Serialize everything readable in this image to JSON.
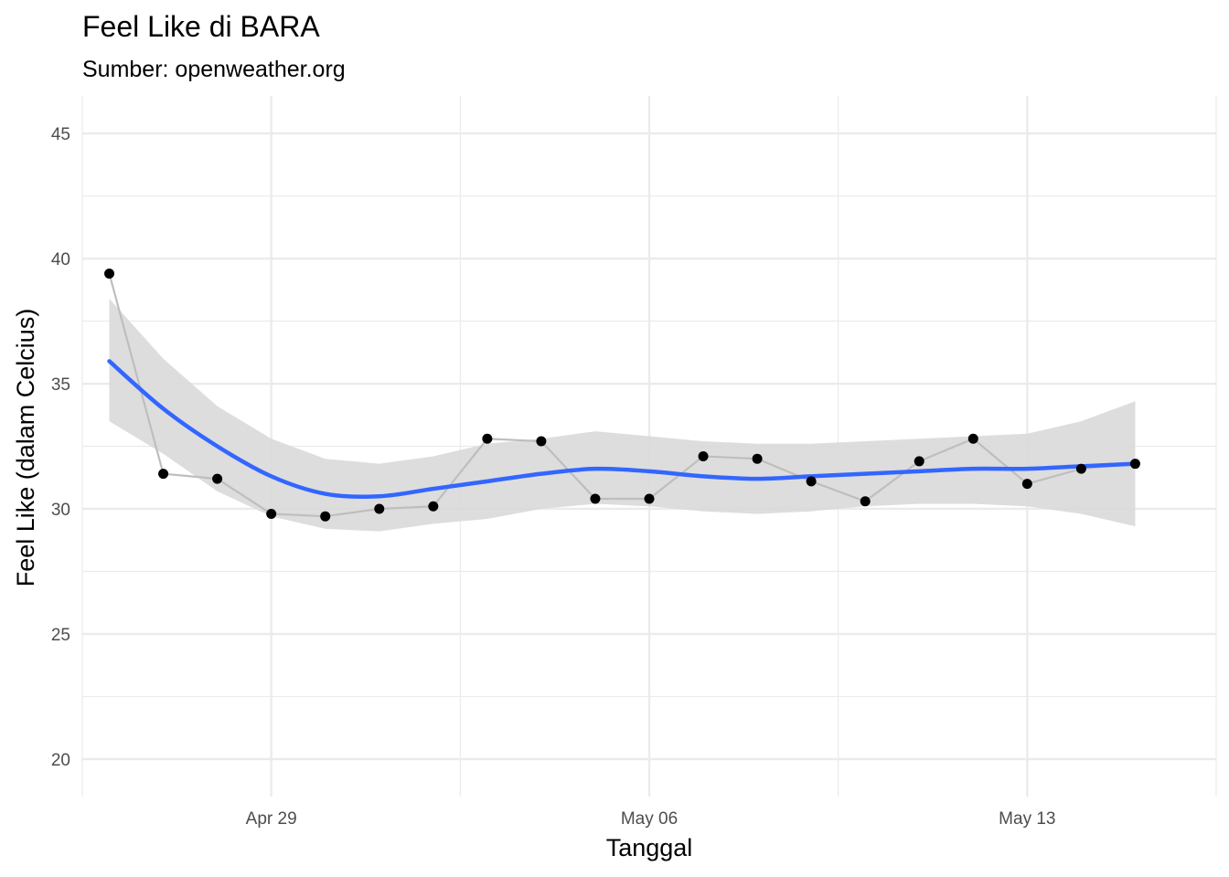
{
  "chart_data": {
    "type": "line",
    "title": "Feel Like di BARA",
    "subtitle": "Sumber: openweather.org",
    "xlabel": "Tanggal",
    "ylabel": "Feel Like (dalam Celcius)",
    "xlim": [
      "2024-04-25T12:00",
      "2024-05-16T12:00"
    ],
    "ylim": [
      20,
      45
    ],
    "y_ticks": [
      20,
      25,
      30,
      35,
      40,
      45
    ],
    "x_ticks": [
      {
        "date": "2024-04-29",
        "label": "Apr 29"
      },
      {
        "date": "2024-05-06",
        "label": "May 06"
      },
      {
        "date": "2024-05-13",
        "label": "May 13"
      }
    ],
    "grid": true,
    "colors": {
      "line": "#bebebe",
      "points": "#000000",
      "smooth": "#3366ff",
      "ribbon": "#d9d9d9",
      "grid": "#ebebeb"
    },
    "series": [
      {
        "type": "line+points",
        "x": [
          "2024-04-26",
          "2024-04-27",
          "2024-04-28",
          "2024-04-29",
          "2024-04-30",
          "2024-05-01",
          "2024-05-02",
          "2024-05-03",
          "2024-05-04",
          "2024-05-05",
          "2024-05-06",
          "2024-05-07",
          "2024-05-08",
          "2024-05-09",
          "2024-05-10",
          "2024-05-11",
          "2024-05-12",
          "2024-05-13",
          "2024-05-14",
          "2024-05-15"
        ],
        "values": [
          39.4,
          31.4,
          31.2,
          29.8,
          29.7,
          30.0,
          30.1,
          32.8,
          32.7,
          30.4,
          30.4,
          32.1,
          32.0,
          31.1,
          30.3,
          31.9,
          32.8,
          31.0,
          31.6,
          31.8
        ]
      },
      {
        "type": "smooth",
        "x": [
          "2024-04-26",
          "2024-04-27",
          "2024-04-28",
          "2024-04-29",
          "2024-04-30",
          "2024-05-01",
          "2024-05-02",
          "2024-05-03",
          "2024-05-04",
          "2024-05-05",
          "2024-05-06",
          "2024-05-07",
          "2024-05-08",
          "2024-05-09",
          "2024-05-10",
          "2024-05-11",
          "2024-05-12",
          "2024-05-13",
          "2024-05-14",
          "2024-05-15"
        ],
        "values": [
          35.9,
          34.0,
          32.5,
          31.3,
          30.6,
          30.5,
          30.8,
          31.1,
          31.4,
          31.6,
          31.5,
          31.3,
          31.2,
          31.3,
          31.4,
          31.5,
          31.6,
          31.6,
          31.7,
          31.8
        ],
        "lower": [
          33.5,
          32.2,
          30.7,
          29.7,
          29.2,
          29.1,
          29.4,
          29.6,
          30.0,
          30.2,
          30.1,
          29.9,
          29.8,
          29.9,
          30.1,
          30.2,
          30.2,
          30.1,
          29.8,
          29.3
        ],
        "upper": [
          38.4,
          36.0,
          34.1,
          32.8,
          32.0,
          31.8,
          32.1,
          32.6,
          32.8,
          33.1,
          32.9,
          32.7,
          32.6,
          32.6,
          32.7,
          32.8,
          32.9,
          33.0,
          33.5,
          34.3
        ]
      }
    ]
  }
}
